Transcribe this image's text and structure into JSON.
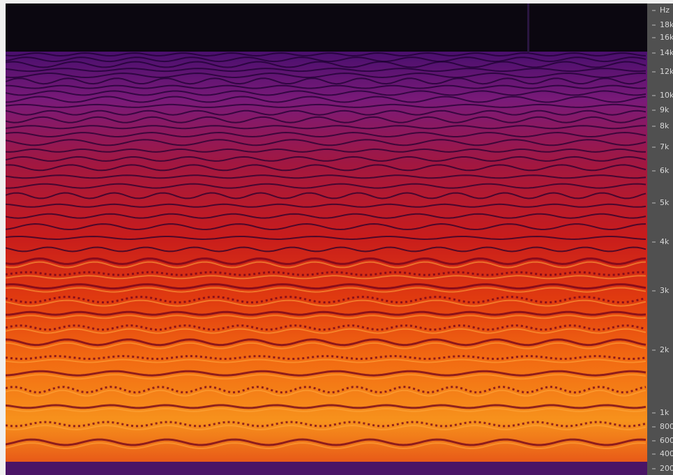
{
  "frequency_axis": {
    "unit": "Hz",
    "labels": [
      "18k",
      "16k",
      "14k",
      "12k",
      "10k",
      "9k",
      "8k",
      "7k",
      "6k",
      "5k",
      "4k",
      "3k",
      "2k",
      "1k",
      "800",
      "600",
      "400",
      "200"
    ]
  }
}
